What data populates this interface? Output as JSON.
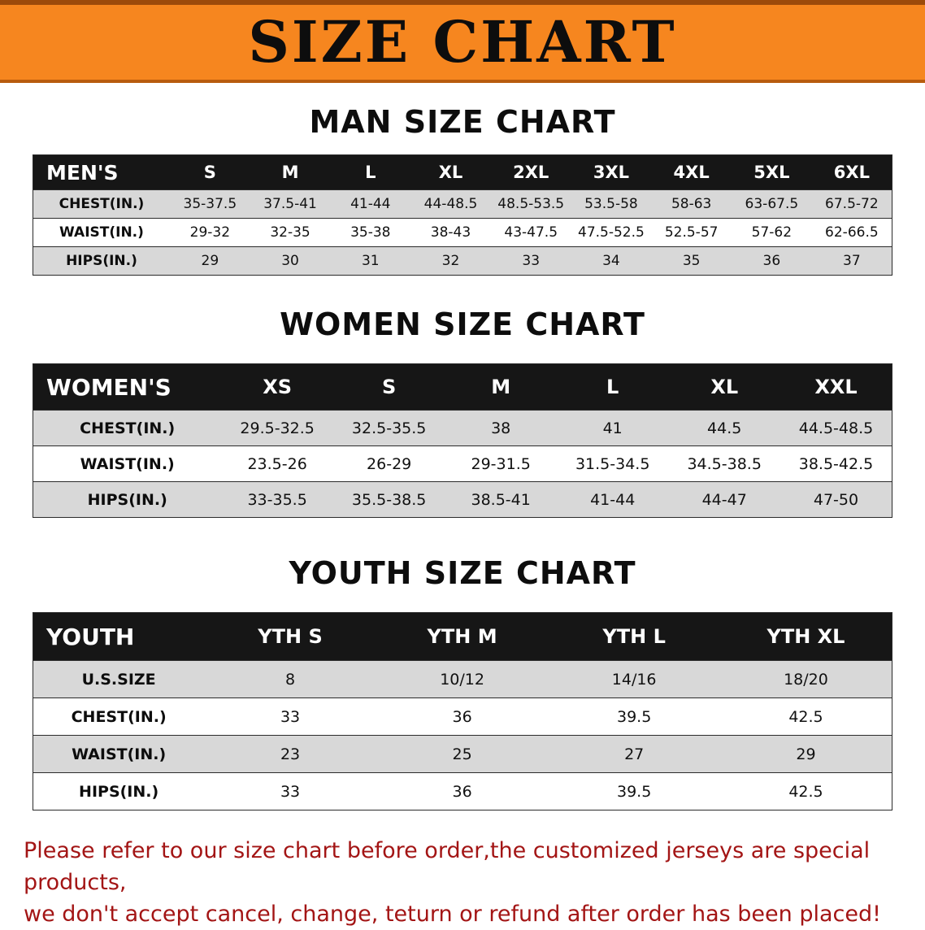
{
  "banner": {
    "title": "SIZE CHART"
  },
  "colors": {
    "banner_bg": "#F6861F",
    "table_header_bg": "#161616",
    "row_gray": "#d8d8d8",
    "footer_text": "#a31515"
  },
  "men": {
    "heading": "MAN SIZE CHART",
    "header": [
      "MEN'S",
      "S",
      "M",
      "L",
      "XL",
      "2XL",
      "3XL",
      "4XL",
      "5XL",
      "6XL"
    ],
    "rows": [
      {
        "label": "CHEST(IN.)",
        "values": [
          "35-37.5",
          "37.5-41",
          "41-44",
          "44-48.5",
          "48.5-53.5",
          "53.5-58",
          "58-63",
          "63-67.5",
          "67.5-72"
        ]
      },
      {
        "label": "WAIST(IN.)",
        "values": [
          "29-32",
          "32-35",
          "35-38",
          "38-43",
          "43-47.5",
          "47.5-52.5",
          "52.5-57",
          "57-62",
          "62-66.5"
        ]
      },
      {
        "label": "HIPS(IN.)",
        "values": [
          "29",
          "30",
          "31",
          "32",
          "33",
          "34",
          "35",
          "36",
          "37"
        ]
      }
    ]
  },
  "women": {
    "heading": "WOMEN SIZE CHART",
    "header": [
      "WOMEN'S",
      "XS",
      "S",
      "M",
      "L",
      "XL",
      "XXL"
    ],
    "rows": [
      {
        "label": "CHEST(IN.)",
        "values": [
          "29.5-32.5",
          "32.5-35.5",
          "38",
          "41",
          "44.5",
          "44.5-48.5"
        ]
      },
      {
        "label": "WAIST(IN.)",
        "values": [
          "23.5-26",
          "26-29",
          "29-31.5",
          "31.5-34.5",
          "34.5-38.5",
          "38.5-42.5"
        ]
      },
      {
        "label": "HIPS(IN.)",
        "values": [
          "33-35.5",
          "35.5-38.5",
          "38.5-41",
          "41-44",
          "44-47",
          "47-50"
        ]
      }
    ]
  },
  "youth": {
    "heading": "YOUTH SIZE CHART",
    "header": [
      "YOUTH",
      "YTH S",
      "YTH M",
      "YTH L",
      "YTH XL"
    ],
    "rows": [
      {
        "label": "U.S.SIZE",
        "values": [
          "8",
          "10/12",
          "14/16",
          "18/20"
        ]
      },
      {
        "label": "CHEST(IN.)",
        "values": [
          "33",
          "36",
          "39.5",
          "42.5"
        ]
      },
      {
        "label": "WAIST(IN.)",
        "values": [
          "23",
          "25",
          "27",
          "29"
        ]
      },
      {
        "label": "HIPS(IN.)",
        "values": [
          "33",
          "36",
          "39.5",
          "42.5"
        ]
      }
    ]
  },
  "footer": {
    "line1": "Please refer to our size chart before order,the customized jerseys are special products,",
    "line2": "we don't accept cancel, change, teturn or refund after order has been placed!"
  }
}
